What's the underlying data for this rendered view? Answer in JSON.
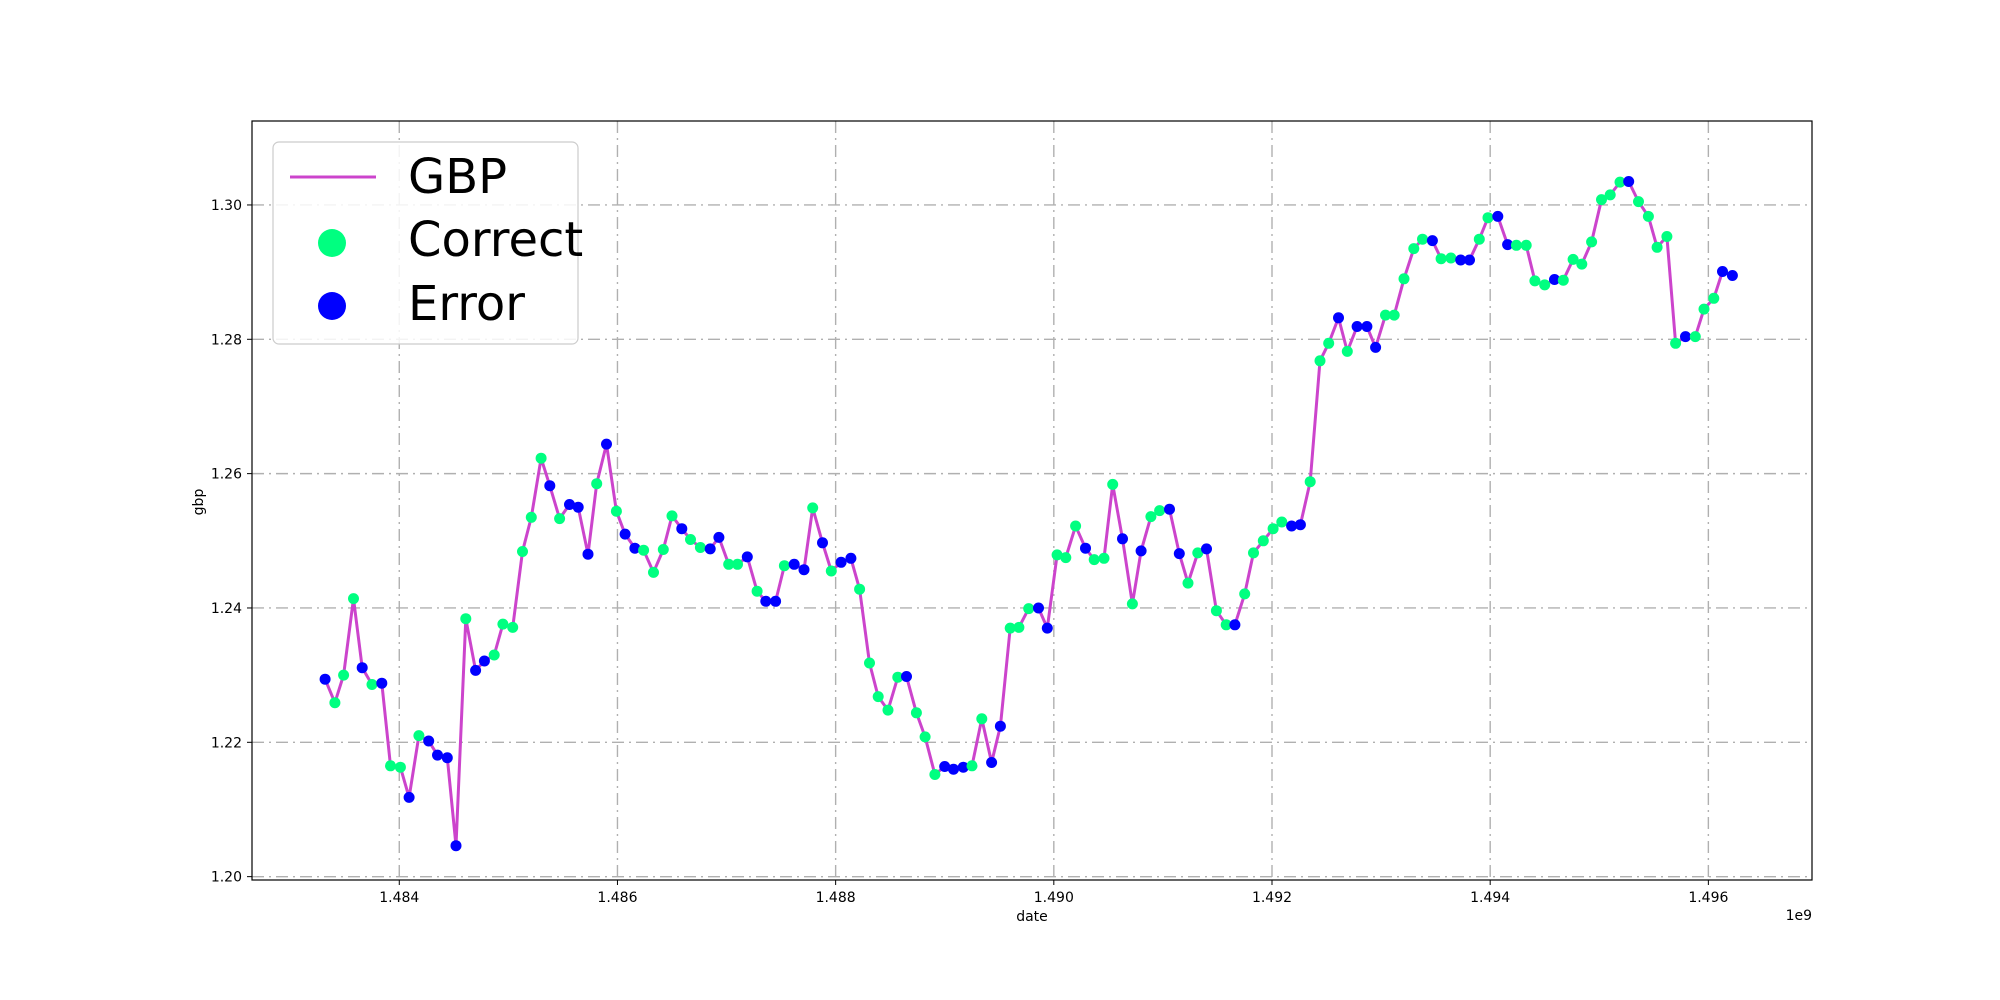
{
  "chart_data": {
    "type": "line",
    "xlabel": "date",
    "ylabel": "gbp",
    "x_offset_label": "1e9",
    "xlim": [
      1.48265,
      1.49695
    ],
    "ylim": [
      1.1995,
      1.3125
    ],
    "x_ticks": [
      1.484,
      1.486,
      1.488,
      1.49,
      1.492,
      1.494,
      1.496
    ],
    "x_tick_labels": [
      "1.484",
      "1.486",
      "1.488",
      "1.490",
      "1.492",
      "1.494",
      "1.496"
    ],
    "y_ticks": [
      1.2,
      1.22,
      1.24,
      1.26,
      1.28,
      1.3
    ],
    "y_tick_labels": [
      "1.20",
      "1.22",
      "1.24",
      "1.26",
      "1.28",
      "1.30"
    ],
    "grid": true,
    "legend_position": "top-left",
    "colors": {
      "line": "#cc44cc",
      "correct": "#00ff80",
      "error": "#0000ff",
      "grid": "#b0b0b0"
    },
    "legend": [
      {
        "label": "GBP",
        "kind": "line"
      },
      {
        "label": "Correct",
        "kind": "marker"
      },
      {
        "label": "Error",
        "kind": "marker"
      }
    ],
    "series": [
      {
        "name": "GBP",
        "x": [
          1.48332,
          1.48341,
          1.48349,
          1.48358,
          1.48366,
          1.48375,
          1.48384,
          1.48392,
          1.48401,
          1.48409,
          1.48418,
          1.48427,
          1.48435,
          1.48444,
          1.48452,
          1.48461,
          1.4847,
          1.48478,
          1.48487,
          1.48495,
          1.48504,
          1.48513,
          1.48521,
          1.4853,
          1.48538,
          1.48547,
          1.48556,
          1.48564,
          1.48573,
          1.48581,
          1.4859,
          1.48599,
          1.48607,
          1.48616,
          1.48624,
          1.48633,
          1.48642,
          1.4865,
          1.48659,
          1.48667,
          1.48676,
          1.48685,
          1.48693,
          1.48702,
          1.4871,
          1.48719,
          1.48728,
          1.48736,
          1.48745,
          1.48753,
          1.48762,
          1.48771,
          1.48779,
          1.48788,
          1.48796,
          1.48805,
          1.48814,
          1.48822,
          1.48831,
          1.48839,
          1.48848,
          1.48857,
          1.48865,
          1.48874,
          1.48882,
          1.48891,
          1.489,
          1.48908,
          1.48917,
          1.48925,
          1.48934,
          1.48943,
          1.48951,
          1.4896,
          1.48968,
          1.48977,
          1.48986,
          1.48994,
          1.49003,
          1.49011,
          1.4902,
          1.49029,
          1.49037,
          1.49046,
          1.49054,
          1.49063,
          1.49072,
          1.4908,
          1.49089,
          1.49097,
          1.49106,
          1.49115,
          1.49123,
          1.49132,
          1.4914,
          1.49149,
          1.49158,
          1.49166,
          1.49175,
          1.49183,
          1.49192,
          1.49201,
          1.49209,
          1.49218,
          1.49226,
          1.49235,
          1.49244,
          1.49252,
          1.49261,
          1.49269,
          1.49278,
          1.49287,
          1.49295,
          1.49304,
          1.49312,
          1.49321,
          1.4933,
          1.49338,
          1.49347,
          1.49355,
          1.49364,
          1.49373,
          1.49381,
          1.4939,
          1.49398,
          1.49407,
          1.49416,
          1.49424,
          1.49433,
          1.49441,
          1.4945,
          1.49459,
          1.49467,
          1.49476,
          1.49484,
          1.49493,
          1.49502,
          1.4951,
          1.49519,
          1.49527,
          1.49536,
          1.49545,
          1.49553,
          1.49562,
          1.4957,
          1.49579,
          1.49588,
          1.49596,
          1.49605,
          1.49613,
          1.49622
        ],
        "y": [
          1.2294,
          1.2259,
          1.23,
          1.2414,
          1.2311,
          1.2286,
          1.2288,
          1.2165,
          1.2163,
          1.2118,
          1.221,
          1.2202,
          1.2181,
          1.2177,
          1.2046,
          1.2384,
          1.2307,
          1.2321,
          1.233,
          1.2376,
          1.2371,
          1.2484,
          1.2535,
          1.2623,
          1.2582,
          1.2533,
          1.2554,
          1.255,
          1.248,
          1.2585,
          1.2644,
          1.2544,
          1.251,
          1.2489,
          1.2486,
          1.2453,
          1.2487,
          1.2537,
          1.2518,
          1.2502,
          1.249,
          1.2488,
          1.2505,
          1.2465,
          1.2465,
          1.2476,
          1.2425,
          1.241,
          1.241,
          1.2463,
          1.2465,
          1.2457,
          1.2549,
          1.2497,
          1.2455,
          1.2468,
          1.2474,
          1.2428,
          1.2318,
          1.2268,
          1.2248,
          1.2297,
          1.2298,
          1.2244,
          1.2208,
          1.2152,
          1.2164,
          1.216,
          1.2163,
          1.2165,
          1.2235,
          1.217,
          1.2224,
          1.237,
          1.2371,
          1.2399,
          1.24,
          1.237,
          1.2479,
          1.2475,
          1.2522,
          1.2489,
          1.2472,
          1.2474,
          1.2584,
          1.2503,
          1.2406,
          1.2485,
          1.2536,
          1.2545,
          1.2547,
          1.2481,
          1.2437,
          1.2482,
          1.2488,
          1.2396,
          1.2375,
          1.2375,
          1.2421,
          1.2482,
          1.25,
          1.2518,
          1.2528,
          1.2522,
          1.2524,
          1.2588,
          1.2768,
          1.2794,
          1.2832,
          1.2782,
          1.2819,
          1.2819,
          1.2788,
          1.2836,
          1.2836,
          1.289,
          1.2935,
          1.2949,
          1.2947,
          1.292,
          1.2921,
          1.2918,
          1.2918,
          1.2949,
          1.2981,
          1.2983,
          1.2941,
          1.294,
          1.294,
          1.2887,
          1.2881,
          1.2889,
          1.2888,
          1.2919,
          1.2912,
          1.2945,
          1.3008,
          1.3015,
          1.3034,
          1.3035,
          1.3005,
          1.2983,
          1.2937,
          1.2953,
          1.2794,
          1.2804,
          1.2804,
          1.2845,
          1.2861,
          1.2901,
          1.2895
        ],
        "status": [
          "E",
          "C",
          "C",
          "C",
          "E",
          "C",
          "E",
          "C",
          "C",
          "E",
          "C",
          "E",
          "E",
          "E",
          "E",
          "C",
          "E",
          "E",
          "C",
          "C",
          "C",
          "C",
          "C",
          "C",
          "E",
          "C",
          "E",
          "E",
          "E",
          "C",
          "E",
          "C",
          "E",
          "E",
          "C",
          "C",
          "C",
          "C",
          "E",
          "C",
          "C",
          "E",
          "E",
          "C",
          "C",
          "E",
          "C",
          "E",
          "E",
          "C",
          "E",
          "E",
          "C",
          "E",
          "C",
          "E",
          "E",
          "C",
          "C",
          "C",
          "C",
          "C",
          "E",
          "C",
          "C",
          "C",
          "E",
          "E",
          "E",
          "C",
          "C",
          "E",
          "E",
          "C",
          "C",
          "C",
          "E",
          "E",
          "C",
          "C",
          "C",
          "E",
          "C",
          "C",
          "C",
          "E",
          "C",
          "E",
          "C",
          "C",
          "E",
          "E",
          "C",
          "C",
          "E",
          "C",
          "C",
          "E",
          "C",
          "C",
          "C",
          "C",
          "C",
          "E",
          "E",
          "C",
          "C",
          "C",
          "E",
          "C",
          "E",
          "E",
          "E",
          "C",
          "C",
          "C",
          "C",
          "C",
          "E",
          "C",
          "C",
          "E",
          "E",
          "C",
          "C",
          "E",
          "E",
          "C",
          "C",
          "C",
          "C",
          "E",
          "C",
          "C",
          "C",
          "C",
          "C",
          "C",
          "C",
          "E",
          "C",
          "C",
          "C",
          "C",
          "C",
          "E",
          "C",
          "C",
          "C",
          "E",
          "E"
        ]
      }
    ]
  }
}
